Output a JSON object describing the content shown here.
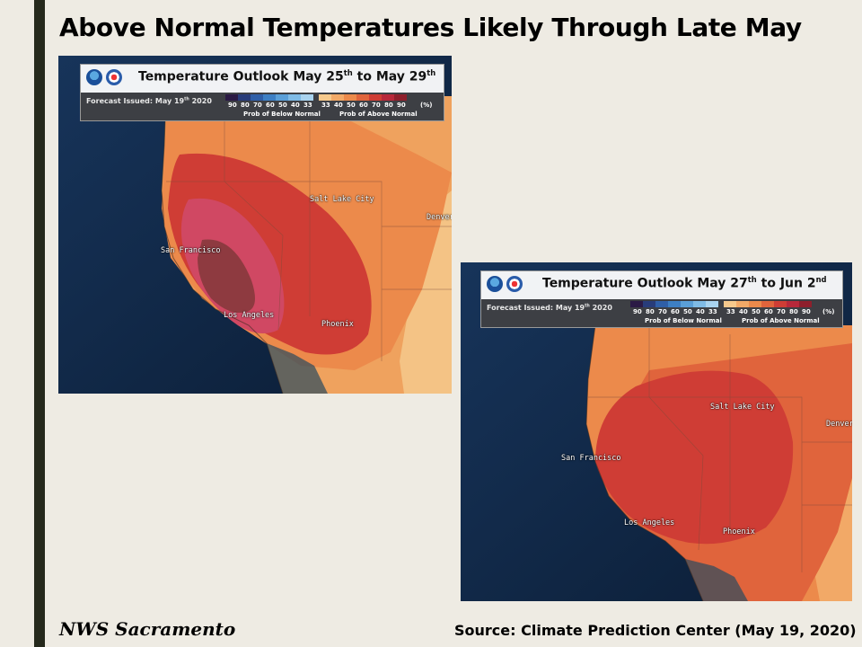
{
  "slide": {
    "title": "Above Normal Temperatures Likely Through Late May",
    "footer_left": "NWS Sacramento",
    "footer_right": "Source: Climate Prediction Center (May 19, 2020)"
  },
  "legend": {
    "below_ticks": [
      "90",
      "80",
      "70",
      "60",
      "50",
      "40",
      "33"
    ],
    "above_ticks": [
      "33",
      "40",
      "50",
      "60",
      "70",
      "80",
      "90"
    ],
    "unit": "(%)",
    "below_label": "Prob of Below Normal",
    "above_label": "Prob of Above Normal",
    "below_colors": [
      "#2b1a45",
      "#283c7a",
      "#2f5fa8",
      "#3d7fc4",
      "#5a9fd8",
      "#7fbbe6",
      "#a9d3ef"
    ],
    "above_colors": [
      "#f6c98c",
      "#f2a967",
      "#ec8a4b",
      "#e0643c",
      "#cf3d35",
      "#b8283a",
      "#8e1f2c"
    ]
  },
  "maps": [
    {
      "title_main": "Temperature Outlook May 25",
      "title_sup1": "th",
      "title_mid": " to May 29",
      "title_sup2": "th",
      "issued_main": "Forecast Issued: May 19",
      "issued_sup": "th",
      "issued_year": " 2020",
      "cities": [
        "San Francisco",
        "Los Angeles",
        "Salt Lake City",
        "Phoenix",
        "Denver"
      ]
    },
    {
      "title_main": "Temperature Outlook May 27",
      "title_sup1": "th",
      "title_mid": " to Jun 2",
      "title_sup2": "nd",
      "issued_main": "Forecast Issued: May 19",
      "issued_sup": "th",
      "issued_year": " 2020",
      "cities": [
        "San Francisco",
        "Los Angeles",
        "Salt Lake City",
        "Phoenix",
        "Denver"
      ]
    }
  ]
}
